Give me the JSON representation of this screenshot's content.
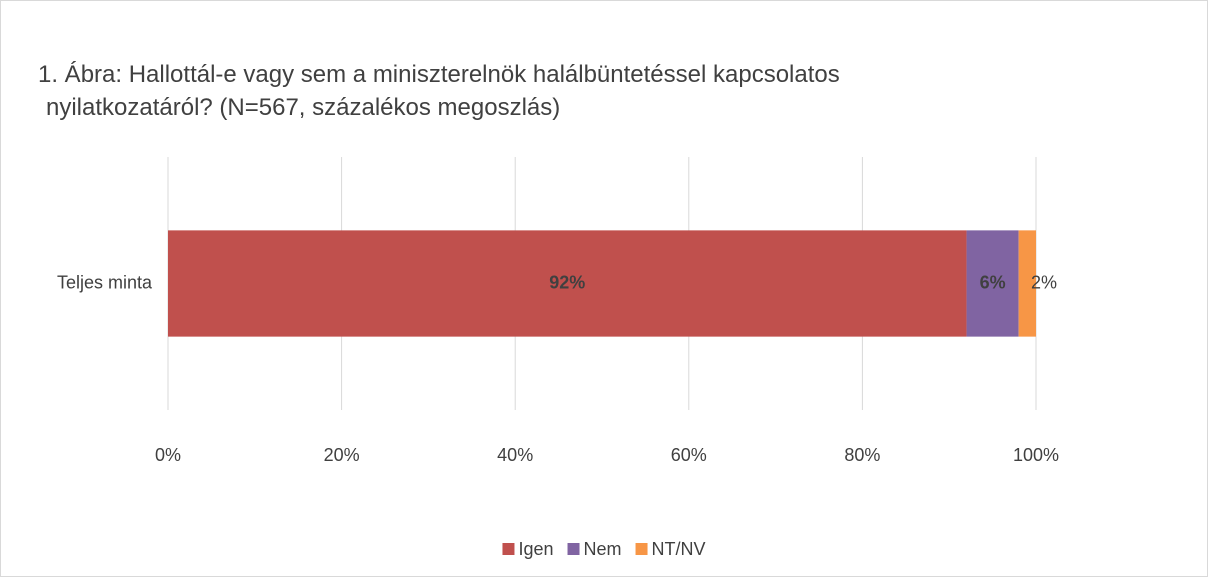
{
  "chart_data": {
    "type": "stacked-barh",
    "title": "1. Ábra: Hallottál-e vagy sem a miniszterelnök halálbüntetéssel kapcsolatos nyilatkozatáról? (N=567, százalékos megoszlás)",
    "categories": [
      "Teljes minta"
    ],
    "series": [
      {
        "name": "Igen",
        "color": "#c0504d",
        "label_color": "#ffffff",
        "values": [
          92
        ],
        "value_labels": [
          "92%"
        ]
      },
      {
        "name": "Nem",
        "color": "#8064a2",
        "label_color": "#ffffff",
        "values": [
          6
        ],
        "value_labels": [
          "6%"
        ]
      },
      {
        "name": "NT/NV",
        "color": "#f79646",
        "label_color": "#404040",
        "values": [
          2
        ],
        "value_labels": [
          "2%"
        ]
      }
    ],
    "xlim": [
      0,
      100
    ],
    "xticks": [
      {
        "value": 0,
        "label": "0%"
      },
      {
        "value": 20,
        "label": "20%"
      },
      {
        "value": 40,
        "label": "40%"
      },
      {
        "value": 60,
        "label": "60%"
      },
      {
        "value": 80,
        "label": "80%"
      },
      {
        "value": 100,
        "label": "100%"
      }
    ],
    "grid": true,
    "legend": "bottom"
  }
}
